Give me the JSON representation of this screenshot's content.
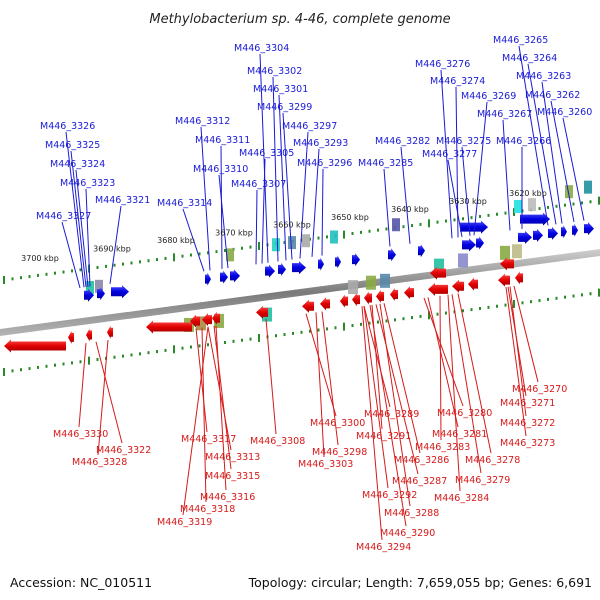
{
  "title": "Methylobacterium sp. 4-46, complete genome",
  "footer": {
    "accession": "Accession: NC_010511",
    "summary": "Topology: circular; Length: 7,659,055 bp; Genes: 6,691"
  },
  "colors": {
    "forward": "#1a1ad6",
    "reverse": "#e01010",
    "backbone": "#8a8a8a",
    "tick_major": "#2a8a2a",
    "tick_minor": "#2a8a2a"
  },
  "kbp_labels": [
    "3700 kbp",
    "3690 kbp",
    "3680 kbp",
    "3670 kbp",
    "3660 kbp",
    "3650 kbp",
    "3640 kbp",
    "3630 kbp",
    "3620 kbp"
  ],
  "forward_genes": [
    "M446_3304",
    "M446_3302",
    "M446_3301",
    "M446_3299",
    "M446_3297",
    "M446_3293",
    "M446_3296",
    "M446_3312",
    "M446_3311",
    "M446_3305",
    "M446_3310",
    "M446_3307",
    "M446_3314",
    "M446_3326",
    "M446_3325",
    "M446_3324",
    "M446_3323",
    "M446_3321",
    "M446_3327",
    "M446_3282",
    "M446_3285",
    "M446_3276",
    "M446_3274",
    "M446_3275",
    "M446_3277",
    "M446_3265",
    "M446_3264",
    "M446_3263",
    "M446_3269",
    "M446_3262",
    "M446_3267",
    "M446_3260",
    "M446_3266"
  ],
  "reverse_genes": [
    "M446_3330",
    "M446_3322",
    "M446_3328",
    "M446_3317",
    "M446_3313",
    "M446_3315",
    "M446_3316",
    "M446_3318",
    "M446_3319",
    "M446_3308",
    "M446_3300",
    "M446_3298",
    "M446_3303",
    "M446_3289",
    "M446_3291",
    "M446_3286",
    "M446_3287",
    "M446_3292",
    "M446_3288",
    "M446_3290",
    "M446_3294",
    "M446_3280",
    "M446_3281",
    "M446_3283",
    "M446_3284",
    "M446_3278",
    "M446_3279",
    "M446_3270",
    "M446_3271",
    "M446_3272",
    "M446_3273"
  ]
}
